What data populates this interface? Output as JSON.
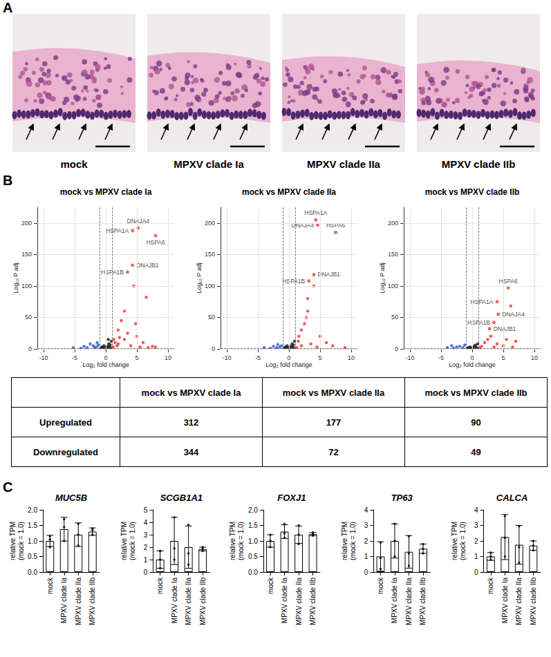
{
  "panel_labels": [
    "A",
    "B",
    "C"
  ],
  "panel_A": {
    "images": [
      "mock",
      "MPXV clade Ia",
      "MPXV clade IIa",
      "MPXV clade IIb"
    ]
  },
  "chart_data": [
    {
      "type": "scatter",
      "title": "mock vs MPXV clade Ia",
      "x_label": "Log₂ fold change",
      "y_label": "Log₁₀ P adj",
      "xlim": [
        -11,
        11
      ],
      "xticks": [
        -10,
        -5,
        0,
        5,
        10
      ],
      "ylim": [
        0,
        225
      ],
      "yticks": [
        0,
        50,
        100,
        150,
        200
      ],
      "grid": true,
      "thresholds": {
        "x": [
          -1,
          1
        ],
        "y": 1.3
      },
      "series": [
        {
          "color": "#e8413c",
          "points": [
            [
              6.5,
              82
            ],
            [
              4.5,
              100
            ],
            [
              3,
              60
            ],
            [
              2.5,
              45
            ],
            [
              2,
              30
            ],
            [
              3.5,
              25
            ],
            [
              5,
              20
            ],
            [
              6,
              10
            ],
            [
              7.5,
              4
            ],
            [
              8,
              3
            ],
            [
              1.5,
              10
            ],
            [
              2,
              8
            ],
            [
              4,
              5
            ],
            [
              5.5,
              3
            ],
            [
              3,
              15
            ],
            [
              2.2,
              18
            ],
            [
              1.2,
              3
            ],
            [
              1.8,
              5
            ],
            [
              6.8,
              2
            ],
            [
              4.8,
              40
            ],
            [
              1.3,
              15
            ]
          ]
        },
        {
          "color": "#3a5fcd",
          "points": [
            [
              -1.5,
              3
            ],
            [
              -2,
              5
            ],
            [
              -3,
              2
            ],
            [
              -4,
              1
            ],
            [
              -5.2,
              2
            ],
            [
              -2.5,
              8
            ],
            [
              -1.2,
              6
            ],
            [
              -1.8,
              2
            ],
            [
              -3.5,
              4
            ],
            [
              -1.4,
              10
            ]
          ]
        },
        {
          "color": "#222222",
          "points": [
            [
              -0.5,
              2
            ],
            [
              0.3,
              4
            ],
            [
              0.8,
              1
            ],
            [
              -0.8,
              1
            ],
            [
              0,
              0.5
            ],
            [
              0.5,
              8
            ],
            [
              -0.3,
              5
            ],
            [
              0.9,
              12
            ],
            [
              0.6,
              3
            ],
            [
              -0.6,
              3
            ],
            [
              0.2,
              1.5
            ],
            [
              -0.2,
              2.5
            ],
            [
              0.7,
              6
            ],
            [
              0.4,
              15
            ]
          ]
        }
      ],
      "annotations": [
        {
          "label": "DNAJA4",
          "x": 5.2,
          "y": 192
        },
        {
          "label": "HSPA1A",
          "x": 4.3,
          "y": 188
        },
        {
          "label": "HSPA6",
          "x": 8,
          "y": 180
        },
        {
          "label": "DNAJB1",
          "x": 4.3,
          "y": 133
        },
        {
          "label": "HSPA1B",
          "x": 3.5,
          "y": 122
        }
      ]
    },
    {
      "type": "scatter",
      "title": "mock vs MPXV clade IIa",
      "x_label": "Log₂ fold change",
      "y_label": "Log₁₀ P adj",
      "xlim": [
        -11,
        11
      ],
      "xticks": [
        -10,
        -5,
        0,
        5,
        10
      ],
      "ylim": [
        0,
        225
      ],
      "yticks": [
        0,
        50,
        100,
        150,
        200
      ],
      "grid": true,
      "thresholds": {
        "x": [
          -1,
          1
        ],
        "y": 1.3
      },
      "series": [
        {
          "color": "#e8413c",
          "points": [
            [
              4,
              100
            ],
            [
              3,
              80
            ],
            [
              3,
              60
            ],
            [
              2.5,
              40
            ],
            [
              2,
              30
            ],
            [
              5,
              20
            ],
            [
              6,
              10
            ],
            [
              7,
              5
            ],
            [
              1.5,
              12
            ],
            [
              3.5,
              8
            ],
            [
              4.5,
              3
            ],
            [
              2,
              5
            ],
            [
              1.2,
              2
            ],
            [
              9,
              2
            ],
            [
              2.8,
              50
            ],
            [
              1.6,
              20
            ]
          ]
        },
        {
          "color": "#3a5fcd",
          "points": [
            [
              -1.5,
              3
            ],
            [
              -2,
              2
            ],
            [
              -3,
              1
            ],
            [
              -1.2,
              5
            ],
            [
              -4,
              2
            ],
            [
              -2.5,
              4
            ],
            [
              -1.8,
              7
            ]
          ]
        },
        {
          "color": "#222222",
          "points": [
            [
              -0.5,
              2
            ],
            [
              0.3,
              4
            ],
            [
              0.8,
              1
            ],
            [
              -0.8,
              1
            ],
            [
              0,
              0.5
            ],
            [
              0.5,
              8
            ],
            [
              -0.3,
              5
            ],
            [
              0.9,
              12
            ],
            [
              0.6,
              3
            ],
            [
              -0.6,
              3
            ],
            [
              0.2,
              1.5
            ],
            [
              -0.2,
              2.5
            ],
            [
              0.7,
              6
            ]
          ]
        }
      ],
      "annotations": [
        {
          "label": "HSPA1A",
          "x": 4.3,
          "y": 205
        },
        {
          "label": "HSPA6",
          "x": 7.5,
          "y": 185
        },
        {
          "label": "DNAJA4",
          "x": 4.6,
          "y": 197
        },
        {
          "label": "DNAJB1",
          "x": 4,
          "y": 118
        },
        {
          "label": "HSPA1B",
          "x": 3.2,
          "y": 108
        }
      ]
    },
    {
      "type": "scatter",
      "title": "mock vs MPXV clade IIb",
      "x_label": "Log₂ fold change",
      "y_label": "Log₁₀ P adj",
      "xlim": [
        -11,
        11
      ],
      "xticks": [
        -10,
        -5,
        0,
        5,
        10
      ],
      "ylim": [
        0,
        225
      ],
      "yticks": [
        0,
        50,
        100,
        150,
        200
      ],
      "grid": true,
      "thresholds": {
        "x": [
          -1,
          1
        ],
        "y": 1.3
      },
      "series": [
        {
          "color": "#e8413c",
          "points": [
            [
              6.2,
              68
            ],
            [
              7,
              12
            ],
            [
              3,
              20
            ],
            [
              2,
              10
            ],
            [
              4,
              8
            ],
            [
              5,
              5
            ],
            [
              6.5,
              3
            ],
            [
              1.5,
              4
            ],
            [
              2.5,
              15
            ],
            [
              3.5,
              3
            ],
            [
              1.2,
              2
            ],
            [
              5.5,
              15
            ]
          ]
        },
        {
          "color": "#3a5fcd",
          "points": [
            [
              -1.5,
              2
            ],
            [
              -2,
              4
            ],
            [
              -3,
              1
            ],
            [
              -4,
              2
            ],
            [
              -1.2,
              6
            ],
            [
              -2.5,
              3
            ],
            [
              -3.3,
              5
            ]
          ]
        },
        {
          "color": "#222222",
          "points": [
            [
              -0.5,
              2
            ],
            [
              0.3,
              4
            ],
            [
              0.8,
              1
            ],
            [
              -0.8,
              1
            ],
            [
              0,
              0.5
            ],
            [
              0.5,
              6
            ],
            [
              -0.3,
              3
            ],
            [
              0.9,
              8
            ],
            [
              0.6,
              3
            ],
            [
              -0.6,
              2
            ],
            [
              0.2,
              1.5
            ]
          ]
        }
      ],
      "annotations": [
        {
          "label": "HSPA6",
          "x": 5.8,
          "y": 97
        },
        {
          "label": "HSPA1A",
          "x": 4,
          "y": 75
        },
        {
          "label": "DNAJA4",
          "x": 4.2,
          "y": 55
        },
        {
          "label": "HSPA1B",
          "x": 3.5,
          "y": 42
        },
        {
          "label": "DNAJB1",
          "x": 2.8,
          "y": 32
        }
      ]
    },
    {
      "type": "bar",
      "title": "MUC5B",
      "y_label": "relative TPM (mock = 1.0)",
      "color": "#ffffff",
      "categories": [
        "mock",
        "MPXV clade Ia",
        "MPXV clade IIa",
        "MPXV clade IIb"
      ],
      "values": [
        1.0,
        1.38,
        1.2,
        1.3
      ],
      "errors": [
        0.18,
        0.38,
        0.38,
        0.12
      ],
      "points": [
        [
          0.8,
          1.05,
          1.15
        ],
        [
          1.0,
          1.45,
          1.7
        ],
        [
          0.85,
          1.2,
          1.55
        ],
        [
          1.2,
          1.35,
          1.4
        ]
      ],
      "ylim": [
        0,
        2
      ],
      "yticks": [
        {
          "value": 0,
          "label": "0.0"
        },
        {
          "value": 0.5,
          "label": "0.5"
        },
        {
          "value": 1,
          "label": "1.0"
        },
        {
          "value": 1.5,
          "label": "1.5"
        },
        {
          "value": 2,
          "label": "2.0"
        }
      ]
    },
    {
      "type": "bar",
      "title": "SCGB1A1",
      "y_label": "relative TPM (mock = 1.0)",
      "color": "#ffffff",
      "categories": [
        "mock",
        "MPXV clade Ia",
        "MPXV clade IIa",
        "MPXV clade IIb"
      ],
      "values": [
        1.0,
        2.5,
        2.0,
        1.85
      ],
      "errors": [
        0.7,
        1.9,
        1.7,
        0.15
      ],
      "points": [
        [
          0.3,
          1.0,
          1.7
        ],
        [
          1.0,
          1.9,
          4.4
        ],
        [
          0.6,
          1.5,
          3.8
        ],
        [
          1.7,
          1.85,
          2.0
        ]
      ],
      "ylim": [
        0,
        5
      ],
      "yticks": [
        0,
        1,
        2,
        3,
        4,
        5
      ]
    },
    {
      "type": "bar",
      "title": "FOXJ1",
      "y_label": "relative TPM (mock = 1.0)",
      "color": "#ffffff",
      "categories": [
        "mock",
        "MPXV clade Ia",
        "MPXV clade IIa",
        "MPXV clade IIb"
      ],
      "values": [
        1.0,
        1.3,
        1.2,
        1.22
      ],
      "errors": [
        0.2,
        0.22,
        0.28,
        0.05
      ],
      "points": [
        [
          0.8,
          1.0,
          1.2
        ],
        [
          1.1,
          1.25,
          1.55
        ],
        [
          0.9,
          1.2,
          1.5
        ],
        [
          1.17,
          1.22,
          1.27
        ]
      ],
      "ylim": [
        0,
        2
      ],
      "yticks": [
        {
          "value": 0,
          "label": "0.0"
        },
        {
          "value": 0.5,
          "label": "0.5"
        },
        {
          "value": 1,
          "label": "1.0"
        },
        {
          "value": 1.5,
          "label": "1.5"
        },
        {
          "value": 2,
          "label": "2.0"
        }
      ]
    },
    {
      "type": "bar",
      "title": "TP63",
      "y_label": "relative TPM (mock = 1.0)",
      "color": "#ffffff",
      "categories": [
        "mock",
        "MPXV clade Ia",
        "MPXV clade IIa",
        "MPXV clade IIb"
      ],
      "values": [
        1.0,
        2.0,
        1.3,
        1.5
      ],
      "errors": [
        0.95,
        1.1,
        1.05,
        0.3
      ],
      "points": [
        [
          0.2,
          0.9,
          1.9
        ],
        [
          1.0,
          2.0,
          3.1
        ],
        [
          0.4,
          1.2,
          2.3
        ],
        [
          1.2,
          1.5,
          1.8
        ]
      ],
      "ylim": [
        0,
        4
      ],
      "yticks": [
        0,
        1,
        2,
        3,
        4
      ]
    },
    {
      "type": "bar",
      "title": "CALCA",
      "y_label": "relative TPM (mock = 1.0)",
      "color": "#ffffff",
      "categories": [
        "mock",
        "MPXV clade Ia",
        "MPXV clade IIa",
        "MPXV clade IIb"
      ],
      "values": [
        1.0,
        2.25,
        1.75,
        1.7
      ],
      "errors": [
        0.25,
        1.45,
        1.25,
        0.3
      ],
      "points": [
        [
          0.8,
          1.0,
          1.25
        ],
        [
          1.0,
          2.2,
          3.6
        ],
        [
          0.6,
          1.6,
          2.95
        ],
        [
          1.4,
          1.7,
          2.0
        ]
      ],
      "ylim": [
        0,
        4
      ],
      "yticks": [
        0,
        1,
        2,
        3,
        4
      ]
    }
  ],
  "table": {
    "header": [
      "mock vs MPXV clade Ia",
      "mock vs MPXV clade IIa",
      "mock vs MPXV clade IIb"
    ],
    "rows": [
      {
        "label": "Upregulated",
        "values": [
          312,
          177,
          90
        ]
      },
      {
        "label": "Downregulated",
        "values": [
          344,
          72,
          49
        ]
      }
    ]
  }
}
